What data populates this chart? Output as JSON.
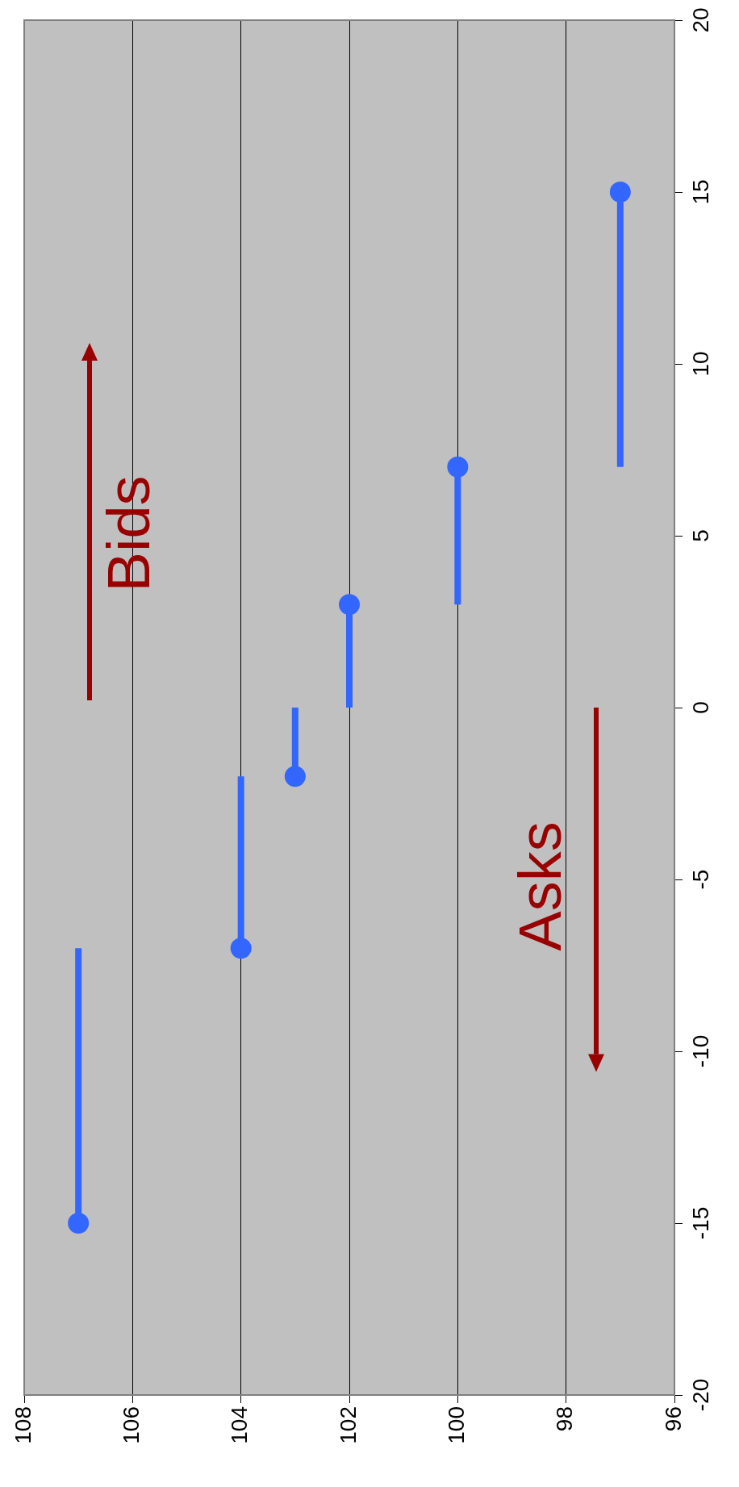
{
  "chart_data": {
    "type": "line",
    "annotations": [
      "Bids",
      "Asks"
    ],
    "xlim": [
      108,
      96
    ],
    "xticks": [
      108,
      106,
      104,
      102,
      100,
      98,
      96
    ],
    "ylim": [
      -20,
      20
    ],
    "yticks": [
      -20,
      -15,
      -10,
      -5,
      0,
      5,
      10,
      15,
      20
    ],
    "grid": "x",
    "marker": "none",
    "line_style": "solid",
    "series": [
      {
        "color": "#3366ff",
        "x": [
          107,
          107
        ],
        "values": [
          -15,
          -7
        ]
      },
      {
        "color": "#3366ff",
        "x": [
          104,
          104
        ],
        "values": [
          -7,
          -2
        ]
      },
      {
        "color": "#3366ff",
        "x": [
          103,
          103
        ],
        "values": [
          -2,
          0
        ]
      },
      {
        "color": "#3366ff",
        "x": [
          102,
          102
        ],
        "values": [
          0,
          3
        ]
      },
      {
        "color": "#3366ff",
        "x": [
          100,
          100
        ],
        "values": [
          3,
          7
        ]
      },
      {
        "color": "#3366ff",
        "x": [
          97,
          97
        ],
        "values": [
          7,
          15
        ]
      },
      {
        "type": "scatter",
        "color": "#3366ff",
        "marker": "circle",
        "x": [
          107,
          104,
          103,
          102,
          100,
          97
        ],
        "values": [
          -15,
          -7,
          -2,
          3,
          7,
          15
        ]
      }
    ]
  }
}
